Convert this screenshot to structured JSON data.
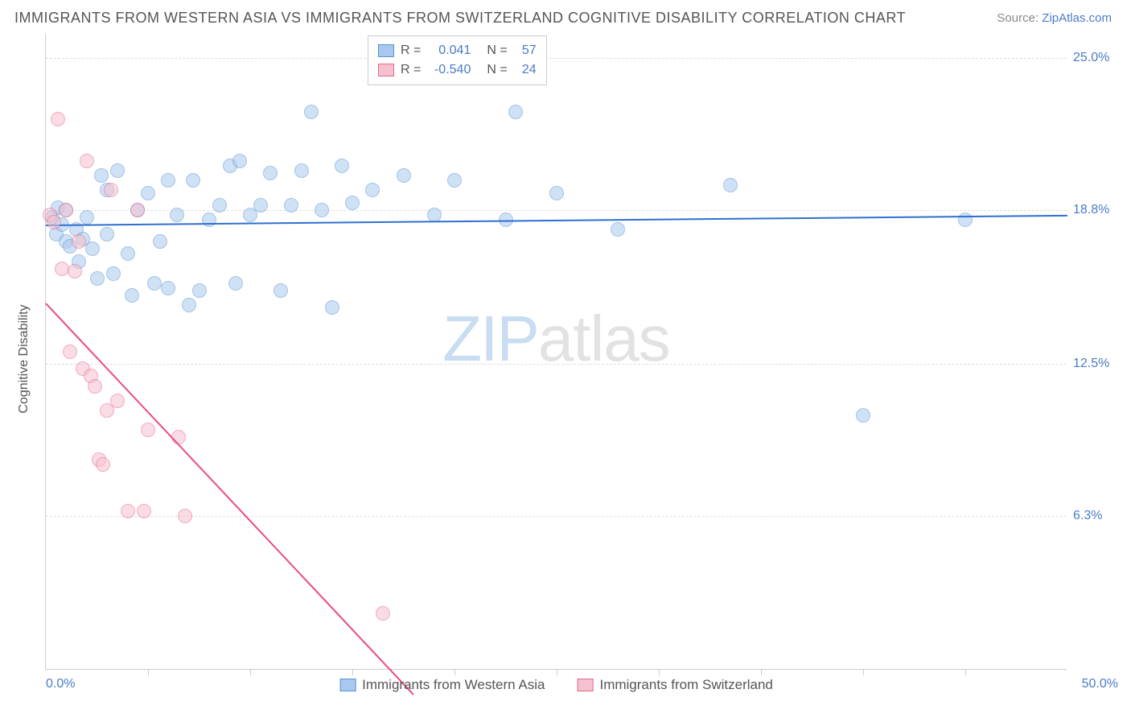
{
  "title": "IMMIGRANTS FROM WESTERN ASIA VS IMMIGRANTS FROM SWITZERLAND COGNITIVE DISABILITY CORRELATION CHART",
  "source_label": "Source: ",
  "source_link": "ZipAtlas.com",
  "ylabel": "Cognitive Disability",
  "watermark_zip": "ZIP",
  "watermark_atlas": "atlas",
  "chart": {
    "type": "scatter",
    "xlim": [
      0,
      50
    ],
    "ylim": [
      0,
      26
    ],
    "background_color": "#ffffff",
    "grid_color": "#dddddd",
    "axis_color": "#cccccc",
    "tick_label_color": "#4a7bc8",
    "yticks": [
      {
        "v": 6.3,
        "label": "6.3%"
      },
      {
        "v": 12.5,
        "label": "12.5%"
      },
      {
        "v": 18.8,
        "label": "18.8%"
      },
      {
        "v": 25.0,
        "label": "25.0%"
      }
    ],
    "xticks_minor": [
      5,
      10,
      15,
      20,
      25,
      30,
      35,
      40,
      45
    ],
    "xrange_left_label": "0.0%",
    "xrange_right_label": "50.0%",
    "marker_radius": 9,
    "marker_opacity": 0.55,
    "series": [
      {
        "name": "Immigrants from Western Asia",
        "fill": "#a8c9ed",
        "stroke": "#5b93d4",
        "line_color": "#2f6fd0",
        "r_label": "R =",
        "r_value": "0.041",
        "n_label": "N =",
        "n_value": "57",
        "trend": {
          "x1": 0,
          "y1": 18.2,
          "x2": 50,
          "y2": 18.6
        },
        "points": [
          [
            0.3,
            18.5
          ],
          [
            0.5,
            17.8
          ],
          [
            0.6,
            18.9
          ],
          [
            0.8,
            18.2
          ],
          [
            1.0,
            17.5
          ],
          [
            1.0,
            18.8
          ],
          [
            1.2,
            17.3
          ],
          [
            1.5,
            18.0
          ],
          [
            1.6,
            16.7
          ],
          [
            1.8,
            17.6
          ],
          [
            2.0,
            18.5
          ],
          [
            2.3,
            17.2
          ],
          [
            2.5,
            16.0
          ],
          [
            2.7,
            20.2
          ],
          [
            3.0,
            17.8
          ],
          [
            3.0,
            19.6
          ],
          [
            3.3,
            16.2
          ],
          [
            3.5,
            20.4
          ],
          [
            4.0,
            17.0
          ],
          [
            4.2,
            15.3
          ],
          [
            4.5,
            18.8
          ],
          [
            5.0,
            19.5
          ],
          [
            5.3,
            15.8
          ],
          [
            5.6,
            17.5
          ],
          [
            6.0,
            20.0
          ],
          [
            6.0,
            15.6
          ],
          [
            6.4,
            18.6
          ],
          [
            7.0,
            14.9
          ],
          [
            7.2,
            20.0
          ],
          [
            7.5,
            15.5
          ],
          [
            8.0,
            18.4
          ],
          [
            8.5,
            19.0
          ],
          [
            9.0,
            20.6
          ],
          [
            9.3,
            15.8
          ],
          [
            9.5,
            20.8
          ],
          [
            10.0,
            18.6
          ],
          [
            10.5,
            19.0
          ],
          [
            11.0,
            20.3
          ],
          [
            11.5,
            15.5
          ],
          [
            12.0,
            19.0
          ],
          [
            12.5,
            20.4
          ],
          [
            13.0,
            22.8
          ],
          [
            13.5,
            18.8
          ],
          [
            14.0,
            14.8
          ],
          [
            14.5,
            20.6
          ],
          [
            15.0,
            19.1
          ],
          [
            16.0,
            19.6
          ],
          [
            17.5,
            20.2
          ],
          [
            19.0,
            18.6
          ],
          [
            20.0,
            20.0
          ],
          [
            22.5,
            18.4
          ],
          [
            23.0,
            22.8
          ],
          [
            25.0,
            19.5
          ],
          [
            28.0,
            18.0
          ],
          [
            33.5,
            19.8
          ],
          [
            40.0,
            10.4
          ],
          [
            45.0,
            18.4
          ]
        ]
      },
      {
        "name": "Immigrants from Switzerland",
        "fill": "#f5c1cf",
        "stroke": "#e8688f",
        "line_color": "#ea4d7d",
        "r_label": "R =",
        "r_value": "-0.540",
        "n_label": "N =",
        "n_value": "24",
        "trend": {
          "x1": 0,
          "y1": 15.0,
          "x2": 18,
          "y2": -1.0
        },
        "points": [
          [
            0.2,
            18.6
          ],
          [
            0.4,
            18.3
          ],
          [
            0.6,
            22.5
          ],
          [
            0.8,
            16.4
          ],
          [
            1.0,
            18.8
          ],
          [
            1.2,
            13.0
          ],
          [
            1.4,
            16.3
          ],
          [
            1.6,
            17.5
          ],
          [
            1.8,
            12.3
          ],
          [
            2.0,
            20.8
          ],
          [
            2.2,
            12.0
          ],
          [
            2.4,
            11.6
          ],
          [
            2.6,
            8.6
          ],
          [
            2.8,
            8.4
          ],
          [
            3.0,
            10.6
          ],
          [
            3.2,
            19.6
          ],
          [
            3.5,
            11.0
          ],
          [
            4.0,
            6.5
          ],
          [
            4.5,
            18.8
          ],
          [
            4.8,
            6.5
          ],
          [
            5.0,
            9.8
          ],
          [
            6.8,
            6.3
          ],
          [
            6.5,
            9.5
          ],
          [
            16.5,
            2.3
          ]
        ]
      }
    ]
  },
  "bottom_legend": [
    {
      "label": "Immigrants from Western Asia",
      "fill": "#a8c9ed",
      "stroke": "#5b93d4"
    },
    {
      "label": "Immigrants from Switzerland",
      "fill": "#f5c1cf",
      "stroke": "#e8688f"
    }
  ]
}
